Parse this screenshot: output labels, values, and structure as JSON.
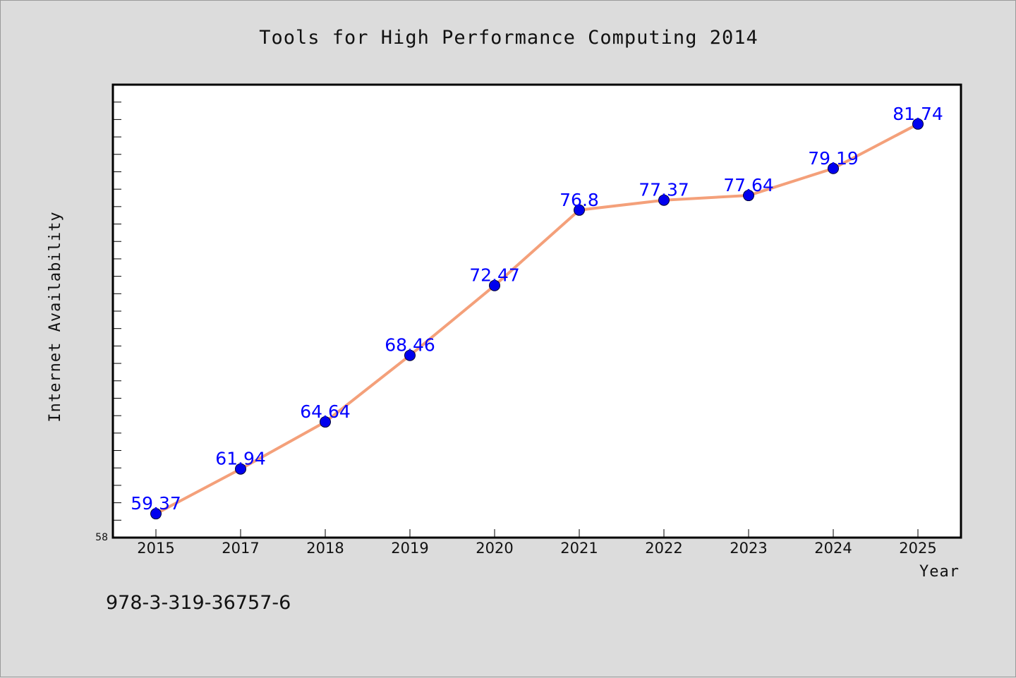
{
  "chart_data": {
    "type": "line",
    "title": "Tools for High Performance Computing 2014",
    "xlabel": "Year",
    "ylabel": "Internet Availability",
    "categories": [
      "2015",
      "2017",
      "2018",
      "2019",
      "2020",
      "2021",
      "2022",
      "2023",
      "2024",
      "2025"
    ],
    "series": [
      {
        "values": [
          59.37,
          61.94,
          64.64,
          68.46,
          72.47,
          76.8,
          77.37,
          77.64,
          79.19,
          81.74
        ],
        "data_labels": [
          "59.37",
          "61.94",
          "64.64",
          "68.46",
          "72.47",
          "76.8",
          "77.37",
          "77.64",
          "79.19",
          "81.74"
        ],
        "line_color": "#f4a07a",
        "marker_color": "#0000ee"
      }
    ],
    "ylim": [
      58,
      84
    ],
    "y_tick_labels": [
      "58"
    ],
    "grid": false,
    "legend": "none"
  },
  "footer": {
    "text": "978-3-319-36757-6"
  },
  "colors": {
    "background": "#dcdcdc",
    "plot_background": "#ffffff",
    "label_color": "#0000ff"
  }
}
